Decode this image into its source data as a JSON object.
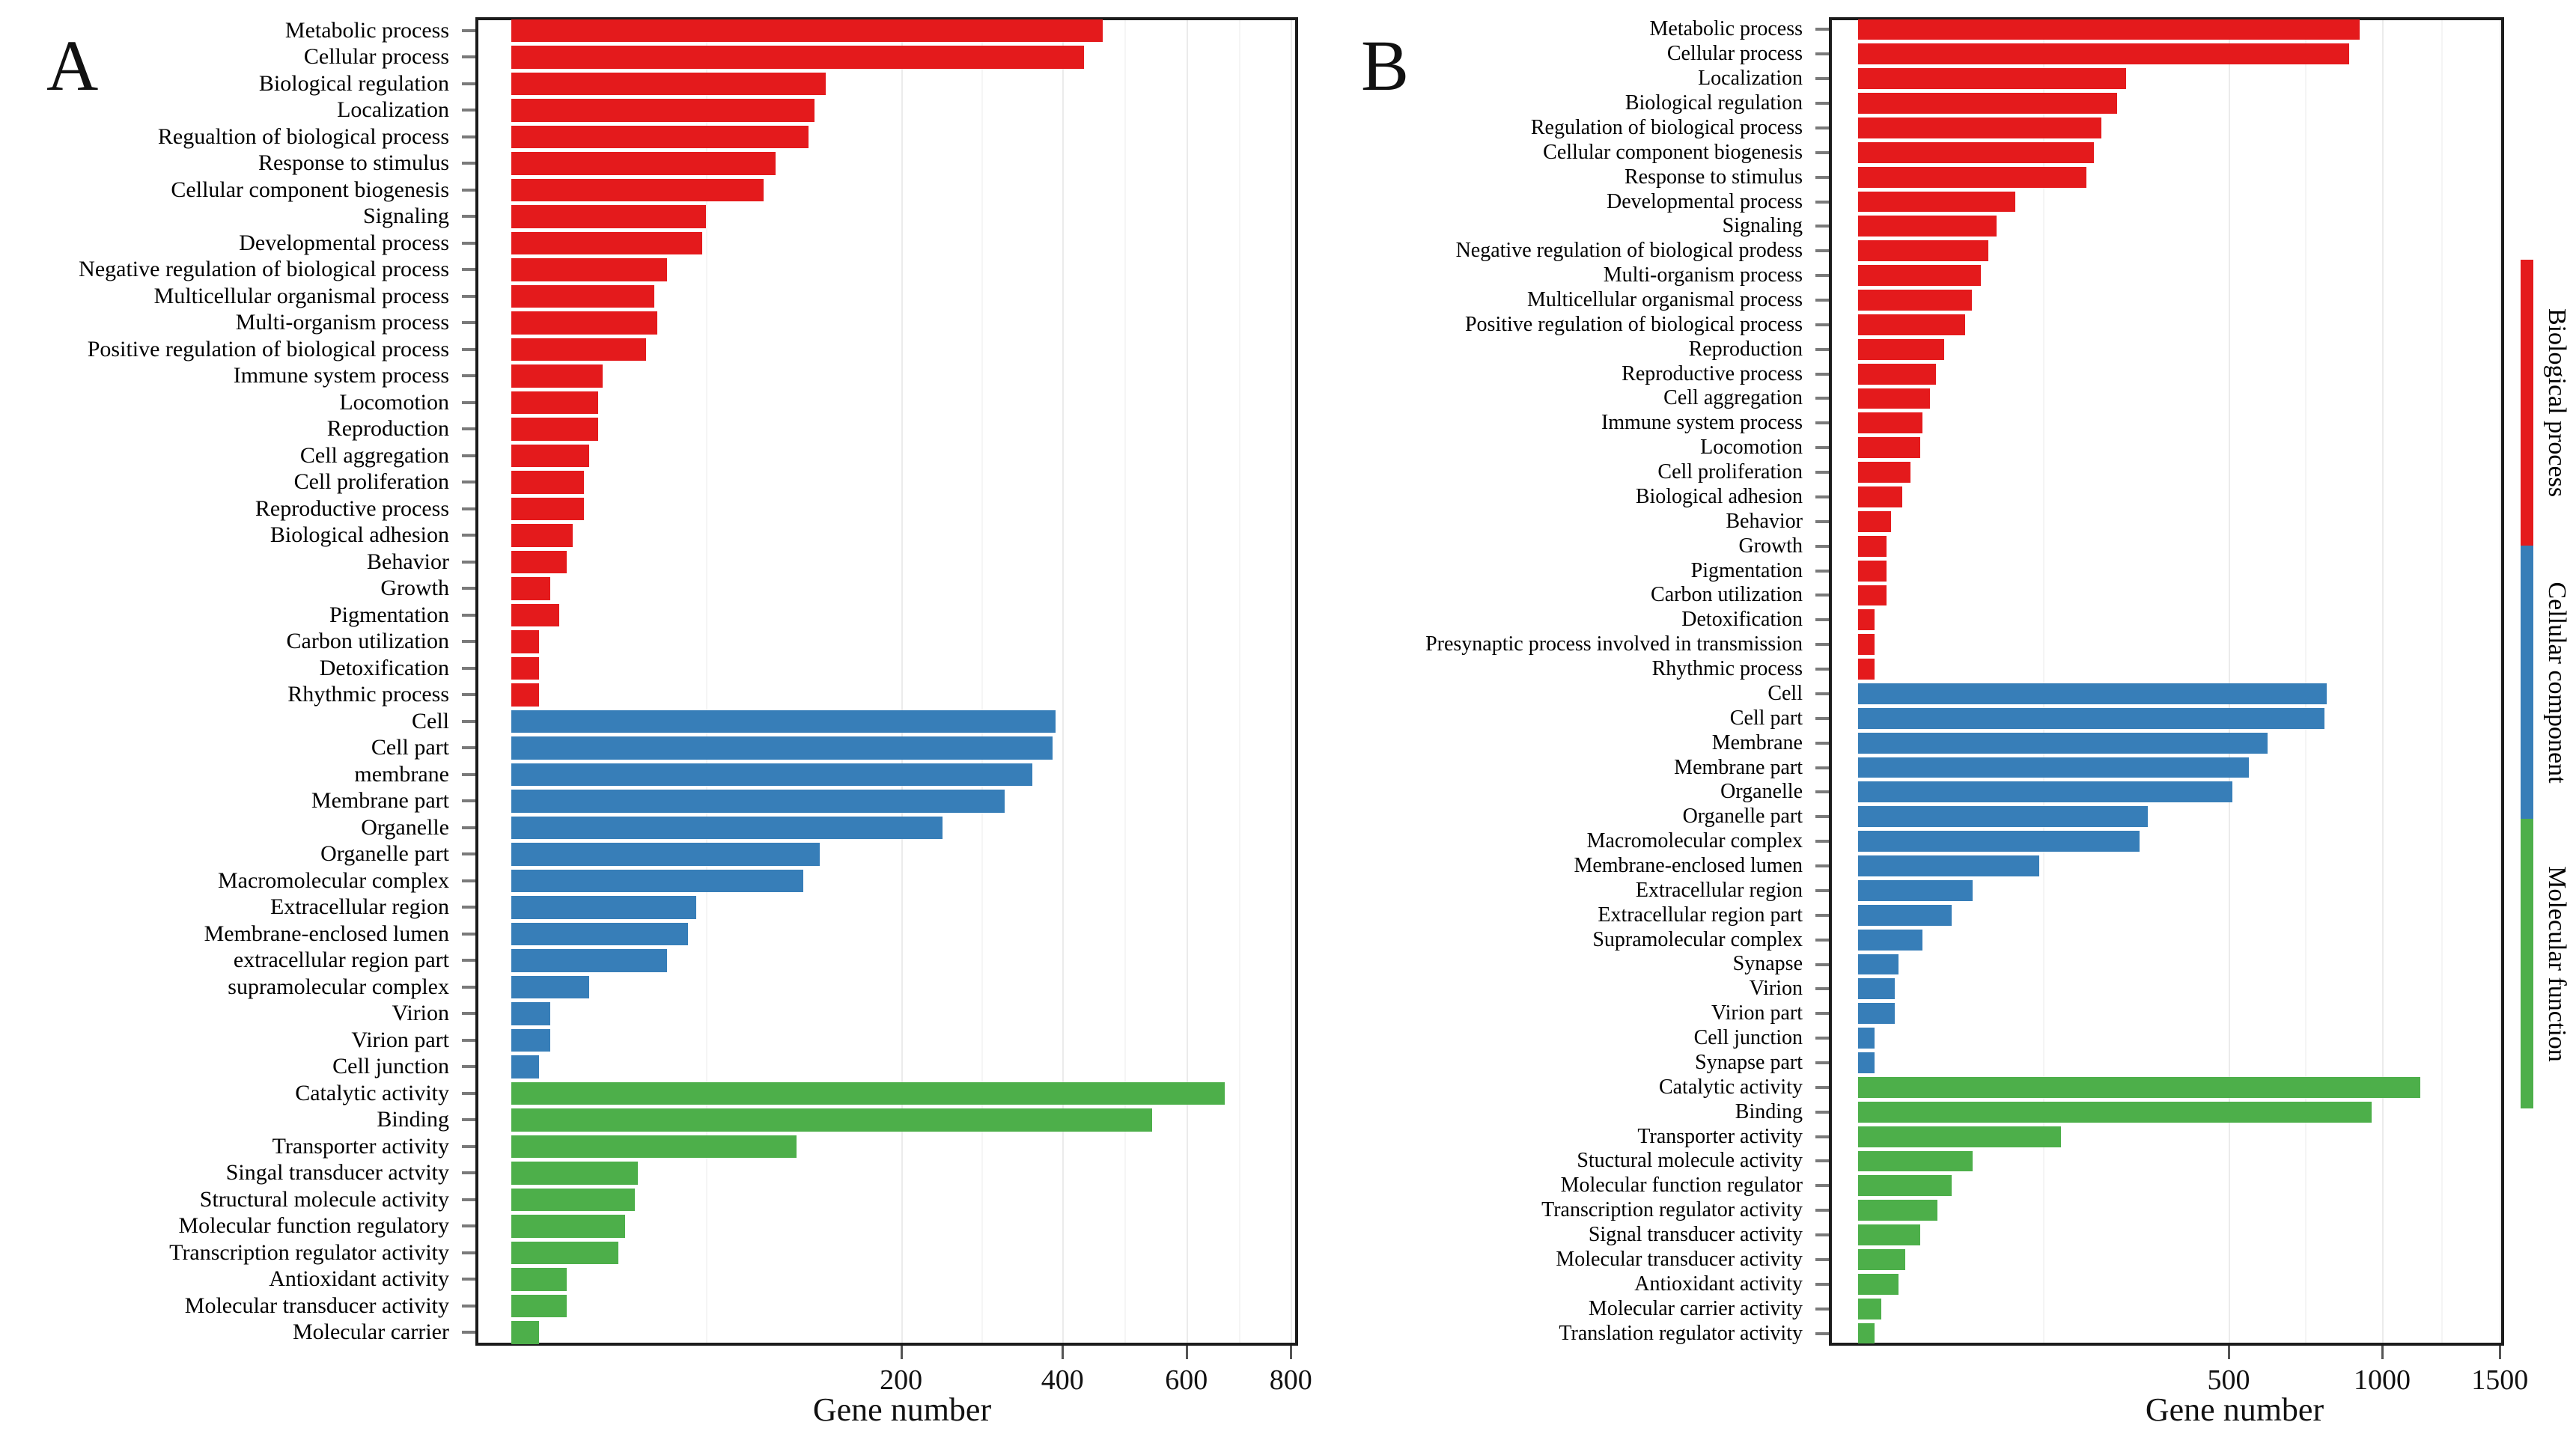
{
  "chart_data": {
    "type": "bar",
    "orientation": "horizontal",
    "x_scale": "sqrt",
    "grid": "on",
    "legend_position": "right-vertical-strip",
    "colors": {
      "biological_process": "#E41A1C",
      "cellular_component": "#377EB8",
      "molecular_function": "#4DAF4A"
    },
    "legend": {
      "items": [
        {
          "label": "Biological process",
          "color": "#E41A1C"
        },
        {
          "label": "Cellular component",
          "color": "#377EB8"
        },
        {
          "label": "Molecular function",
          "color": "#4DAF4A"
        }
      ]
    },
    "panels": [
      {
        "panel_label": "A",
        "xlabel": "Gene number",
        "ticks": [
          200,
          400,
          600,
          800
        ],
        "axis_max": 815,
        "groups": [
          {
            "name": "Biological process",
            "color": "#E41A1C",
            "items": [
              {
                "label": "Metabolic process",
                "value": 460
              },
              {
                "label": "Cellular process",
                "value": 432
              },
              {
                "label": "Biological regulation",
                "value": 130
              },
              {
                "label": "Localization",
                "value": 121
              },
              {
                "label": "Regualtion of biological process",
                "value": 116
              },
              {
                "label": "Response to stimulus",
                "value": 92
              },
              {
                "label": "Cellular component biogenesis",
                "value": 84
              },
              {
                "label": "Signaling",
                "value": 50
              },
              {
                "label": "Developmental process",
                "value": 48
              },
              {
                "label": "Negative regulation of biological process",
                "value": 32
              },
              {
                "label": "Multicellular organismal process",
                "value": 27
              },
              {
                "label": "Multi-organism process",
                "value": 28
              },
              {
                "label": "Positive regulation of biological process",
                "value": 24
              },
              {
                "label": "Immune system process",
                "value": 11
              },
              {
                "label": "Locomotion",
                "value": 10
              },
              {
                "label": "Reproduction",
                "value": 10
              },
              {
                "label": "Cell aggregation",
                "value": 8
              },
              {
                "label": "Cell proliferation",
                "value": 7
              },
              {
                "label": "Reproductive process",
                "value": 7
              },
              {
                "label": "Biological adhesion",
                "value": 5
              },
              {
                "label": "Behavior",
                "value": 4
              },
              {
                "label": "Growth",
                "value": 2
              },
              {
                "label": "Pigmentation",
                "value": 3
              },
              {
                "label": "Carbon utilization",
                "value": 1
              },
              {
                "label": "Detoxification",
                "value": 1
              },
              {
                "label": "Rhythmic process",
                "value": 1
              }
            ]
          },
          {
            "name": "Cellular component",
            "color": "#377EB8",
            "items": [
              {
                "label": "Cell",
                "value": 390
              },
              {
                "label": "Cell part",
                "value": 386
              },
              {
                "label": "membrane",
                "value": 357
              },
              {
                "label": "Membrane part",
                "value": 320
              },
              {
                "label": "Organelle",
                "value": 245
              },
              {
                "label": "Organelle part",
                "value": 125
              },
              {
                "label": "Macromolecular complex",
                "value": 112
              },
              {
                "label": "Extracellular region",
                "value": 45
              },
              {
                "label": "Membrane-enclosed lumen",
                "value": 41
              },
              {
                "label": "extracellular region part",
                "value": 32
              },
              {
                "label": "supramolecular complex",
                "value": 8
              },
              {
                "label": "Virion",
                "value": 2
              },
              {
                "label": "Virion part",
                "value": 2
              },
              {
                "label": "Cell junction",
                "value": 1
              }
            ]
          },
          {
            "name": "Molecular function",
            "color": "#4DAF4A",
            "items": [
              {
                "label": "Catalytic activity",
                "value": 670
              },
              {
                "label": "Binding",
                "value": 540
              },
              {
                "label": "Transporter activity",
                "value": 107
              },
              {
                "label": "Singal transducer actvity",
                "value": 21
              },
              {
                "label": "Structural molecule activity",
                "value": 20
              },
              {
                "label": "Molecular function regulatory",
                "value": 17
              },
              {
                "label": "Transcription regulator activity",
                "value": 15
              },
              {
                "label": "Antioxidant activity",
                "value": 4
              },
              {
                "label": "Molecular transducer activity",
                "value": 4
              },
              {
                "label": "Molecular carrier",
                "value": 1
              }
            ]
          }
        ]
      },
      {
        "panel_label": "B",
        "xlabel": "Gene number",
        "ticks": [
          500,
          1000,
          1500
        ],
        "axis_max": 1520,
        "groups": [
          {
            "name": "Biological process",
            "color": "#E41A1C",
            "items": [
              {
                "label": "Metabolic process",
                "value": 915
              },
              {
                "label": "Cellular process",
                "value": 878
              },
              {
                "label": "Localization",
                "value": 262
              },
              {
                "label": "Biological regulation",
                "value": 245
              },
              {
                "label": "Regulation of biological process",
                "value": 216
              },
              {
                "label": "Cellular component biogenesis",
                "value": 202
              },
              {
                "label": "Response to stimulus",
                "value": 190
              },
              {
                "label": "Developmental process",
                "value": 90
              },
              {
                "label": "Signaling",
                "value": 70
              },
              {
                "label": "Negative regulation of biological prodess",
                "value": 62
              },
              {
                "label": "Multi-organism process",
                "value": 55
              },
              {
                "label": "Multicellular organismal process",
                "value": 47
              },
              {
                "label": "Positive regulation of biological process",
                "value": 42
              },
              {
                "label": "Reproduction",
                "value": 27
              },
              {
                "label": "Reproductive process",
                "value": 22
              },
              {
                "label": "Cell aggregation",
                "value": 19
              },
              {
                "label": "Immune system process",
                "value": 15
              },
              {
                "label": "Locomotion",
                "value": 14
              },
              {
                "label": "Cell proliferation",
                "value": 10
              },
              {
                "label": "Biological adhesion",
                "value": 7
              },
              {
                "label": "Behavior",
                "value": 4
              },
              {
                "label": "Growth",
                "value": 3
              },
              {
                "label": "Pigmentation",
                "value": 3
              },
              {
                "label": "Carbon utilization",
                "value": 3
              },
              {
                "label": "Detoxification",
                "value": 1
              },
              {
                "label": "Presynaptic process involved in transmission",
                "value": 1
              },
              {
                "label": "Rhythmic process",
                "value": 1
              }
            ]
          },
          {
            "name": "Cellular component",
            "color": "#377EB8",
            "items": [
              {
                "label": "Cell",
                "value": 800
              },
              {
                "label": "Cell part",
                "value": 792
              },
              {
                "label": "Membrane",
                "value": 610
              },
              {
                "label": "Membrane part",
                "value": 557
              },
              {
                "label": "Organelle",
                "value": 510
              },
              {
                "label": "Organelle part",
                "value": 305
              },
              {
                "label": "Macromolecular complex",
                "value": 288
              },
              {
                "label": "Membrane-enclosed lumen",
                "value": 120
              },
              {
                "label": "Extracellular region",
                "value": 48
              },
              {
                "label": "Extracellular region part",
                "value": 32
              },
              {
                "label": "Supramolecular complex",
                "value": 15
              },
              {
                "label": "Synapse",
                "value": 6
              },
              {
                "label": "Virion",
                "value": 5
              },
              {
                "label": "Virion part",
                "value": 5
              },
              {
                "label": "Cell junction",
                "value": 1
              },
              {
                "label": "Synapse part",
                "value": 1
              }
            ]
          },
          {
            "name": "Molecular function",
            "color": "#4DAF4A",
            "items": [
              {
                "label": "Catalytic activity",
                "value": 1150
              },
              {
                "label": "Binding",
                "value": 960
              },
              {
                "label": "Transporter activity",
                "value": 150
              },
              {
                "label": "Stuctural molecule activity",
                "value": 48
              },
              {
                "label": "Molecular function regulator",
                "value": 32
              },
              {
                "label": "Transcription regulator activity",
                "value": 23
              },
              {
                "label": "Signal transducer activity",
                "value": 14
              },
              {
                "label": "Molecular transducer activity",
                "value": 8
              },
              {
                "label": "Antioxidant activity",
                "value": 6
              },
              {
                "label": "Molecular carrier activity",
                "value": 2
              },
              {
                "label": "Translation regulator activity",
                "value": 1
              }
            ]
          }
        ]
      }
    ]
  }
}
